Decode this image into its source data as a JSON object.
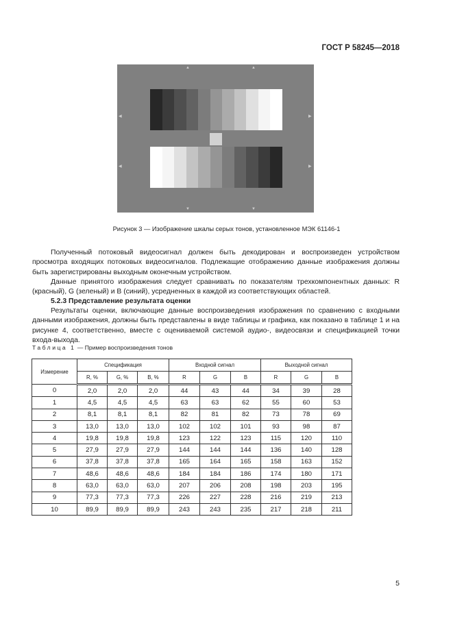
{
  "header": {
    "doc_id": "ГОСТ Р 58245—2018"
  },
  "figure": {
    "caption": "Рисунок 3 — Изображение шкалы серых тонов, установленное МЭК 61146-1",
    "background": "#808080",
    "top_bar_colors": [
      "#272727",
      "#3b3b3b",
      "#4f4f4f",
      "#626262",
      "#7c7c7c",
      "#959595",
      "#ababab",
      "#c3c3c3",
      "#e0e0e0",
      "#f5f5f5",
      "#ffffff"
    ],
    "bottom_bar_colors": [
      "#ffffff",
      "#f5f5f5",
      "#e0e0e0",
      "#c3c3c3",
      "#ababab",
      "#959595",
      "#7c7c7c",
      "#626262",
      "#4f4f4f",
      "#3b3b3b",
      "#272727"
    ]
  },
  "body": {
    "p1": "Полученный потоковый видеосигнал должен быть декодирован и воспроизведен устройством просмотра входящих потоковых видеосигналов. Подлежащие отображению данные изображения должны быть зарегистрированы выходным оконечным устройством.",
    "p2": "Данные принятого изображения следует сравнивать по показателям трехкомпонентных данных: R (красный), G (зеленый) и B (синий), усредненных в каждой из соответствующих областей.",
    "section": "5.2.3 Представление результата оценки",
    "p3": "Результаты оценки, включающие данные воспроизведения изображения по сравнению с входными данными изображения, должны быть представлены в виде таблицы и графика, как показано в таблице 1 и на рисунке 4, соответственно, вместе с оцениваемой системой аудио-, видеосвязи и спецификацией точки входа-выхода."
  },
  "table": {
    "caption_label": "Таблица 1",
    "caption_text": " — Пример воспроизведения тонов",
    "col_measure": "Измерение",
    "groups": [
      "Спецификация",
      "Входной сигнал",
      "Выходной сигнал"
    ],
    "subcols": [
      "R, %",
      "G, %",
      "B, %",
      "R",
      "G",
      "B",
      "R",
      "G",
      "B"
    ],
    "rows": [
      [
        "0",
        "2,0",
        "2,0",
        "2,0",
        "44",
        "43",
        "44",
        "34",
        "39",
        "28"
      ],
      [
        "1",
        "4,5",
        "4,5",
        "4,5",
        "63",
        "63",
        "62",
        "55",
        "60",
        "53"
      ],
      [
        "2",
        "8,1",
        "8,1",
        "8,1",
        "82",
        "81",
        "82",
        "73",
        "78",
        "69"
      ],
      [
        "3",
        "13,0",
        "13,0",
        "13,0",
        "102",
        "102",
        "101",
        "93",
        "98",
        "87"
      ],
      [
        "4",
        "19,8",
        "19,8",
        "19,8",
        "123",
        "122",
        "123",
        "115",
        "120",
        "110"
      ],
      [
        "5",
        "27,9",
        "27,9",
        "27,9",
        "144",
        "144",
        "144",
        "136",
        "140",
        "128"
      ],
      [
        "6",
        "37,8",
        "37,8",
        "37,8",
        "165",
        "164",
        "165",
        "158",
        "163",
        "152"
      ],
      [
        "7",
        "48,6",
        "48,6",
        "48,6",
        "184",
        "184",
        "186",
        "174",
        "180",
        "171"
      ],
      [
        "8",
        "63,0",
        "63,0",
        "63,0",
        "207",
        "206",
        "208",
        "198",
        "203",
        "195"
      ],
      [
        "9",
        "77,3",
        "77,3",
        "77,3",
        "226",
        "227",
        "228",
        "216",
        "219",
        "213"
      ],
      [
        "10",
        "89,9",
        "89,9",
        "89,9",
        "243",
        "243",
        "235",
        "217",
        "218",
        "211"
      ]
    ]
  },
  "footer": {
    "page_number": "5"
  }
}
